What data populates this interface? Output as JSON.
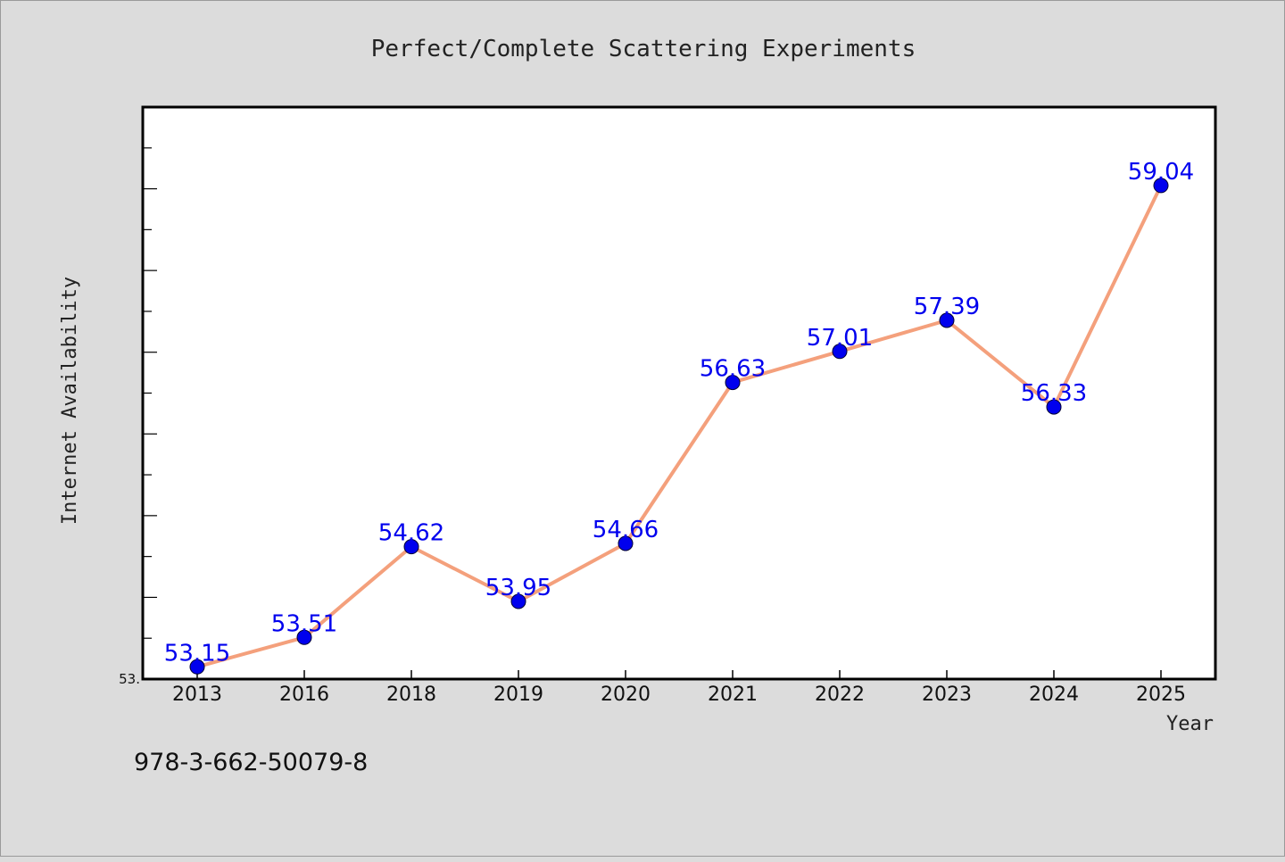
{
  "chart_data": {
    "type": "line",
    "title": "Perfect/Complete Scattering Experiments",
    "xlabel": "Year",
    "ylabel": "Internet Availability",
    "categories": [
      "2013",
      "2016",
      "2018",
      "2019",
      "2020",
      "2021",
      "2022",
      "2023",
      "2024",
      "2025"
    ],
    "series": [
      {
        "values": [
          53.15,
          53.51,
          54.62,
          53.95,
          54.66,
          56.63,
          57.01,
          57.39,
          56.33,
          59.04
        ],
        "data_labels": [
          "53.15",
          "53.51",
          "54.62",
          "53.95",
          "54.66",
          "56.63",
          "57.01",
          "57.39",
          "56.33",
          "59.04"
        ]
      }
    ],
    "ylim": [
      53.0,
      60.0
    ],
    "y_tick_label": "53.",
    "grid": false,
    "legend": "none",
    "colors": {
      "line": "#f4a07c",
      "marker": "#0000ee",
      "marker_edge": "#000033",
      "data_label": "#0000ee",
      "plot_background": "#ffffff",
      "figure_background": "#dcdcdc"
    }
  },
  "footnote": "978-3-662-50079-8"
}
